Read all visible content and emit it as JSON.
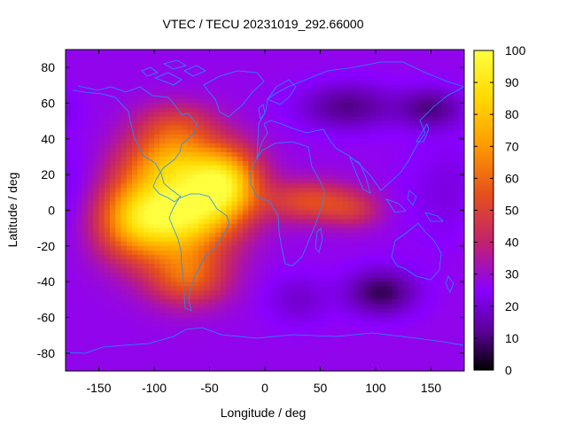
{
  "chart_data": {
    "type": "heatmap",
    "title": "VTEC / TECU 20231019_292.66000",
    "xlabel": "Longitude / deg",
    "ylabel": "Latitude / deg",
    "xlim": [
      -180,
      180
    ],
    "ylim": [
      -90,
      90
    ],
    "xticks": [
      -150,
      -100,
      -50,
      0,
      50,
      100,
      150
    ],
    "yticks": [
      80,
      60,
      40,
      20,
      0,
      -20,
      -40,
      -60,
      -80
    ],
    "colorbar": {
      "min": 0,
      "max": 100,
      "ticks": [
        100,
        90,
        80,
        70,
        60,
        50,
        40,
        30,
        20,
        10,
        0
      ],
      "colors": [
        "#000000",
        "#5a0096",
        "#8a00ff",
        "#c2226e",
        "#e6501b",
        "#ff9900",
        "#ffd900",
        "#ffff40"
      ],
      "stops": [
        0,
        0.12,
        0.25,
        0.4,
        0.55,
        0.7,
        0.85,
        1.0
      ]
    },
    "grid": {
      "dlon": 5,
      "dlat": 2.5
    },
    "field": {
      "background_tecu": 27,
      "features": [
        {
          "name": "anomaly-crest-south-america",
          "lon": -75,
          "lat": -2,
          "slon": 32,
          "slat": 17,
          "amp": 63
        },
        {
          "name": "anomaly-crest-north-america",
          "lon": -85,
          "lat": 28,
          "slon": 30,
          "slat": 12,
          "amp": 36
        },
        {
          "name": "atlantic-extension",
          "lon": -35,
          "lat": 15,
          "slon": 22,
          "slat": 14,
          "amp": 50
        },
        {
          "name": "pacific-extension",
          "lon": -120,
          "lat": -5,
          "slon": 25,
          "slat": 16,
          "amp": 38
        },
        {
          "name": "southern-extension",
          "lon": -70,
          "lat": -38,
          "slon": 25,
          "slat": 11,
          "amp": 28
        },
        {
          "name": "north-america-high-lat",
          "lon": -80,
          "lat": 48,
          "slon": 25,
          "slat": 9,
          "amp": 18
        },
        {
          "name": "africa-tongue",
          "lon": 40,
          "lat": 5,
          "slon": 28,
          "slat": 8,
          "amp": 26
        },
        {
          "name": "indian-ocean-tongue",
          "lon": 80,
          "lat": 0,
          "slon": 18,
          "slat": 7,
          "amp": 14
        },
        {
          "name": "siberia-minimum",
          "lon": 75,
          "lat": 58,
          "slon": 30,
          "slat": 9,
          "amp": -16
        },
        {
          "name": "east-asia-minimum",
          "lon": 150,
          "lat": 57,
          "slon": 20,
          "slat": 8,
          "amp": -16
        },
        {
          "name": "south-indian-minimum",
          "lon": 105,
          "lat": -46,
          "slon": 22,
          "slat": 9,
          "amp": -20
        },
        {
          "name": "south-atlantic-minimum",
          "lon": 30,
          "lat": -50,
          "slon": 20,
          "slat": 10,
          "amp": -8
        },
        {
          "name": "pacific-low-lat-dip",
          "lon": 170,
          "lat": 10,
          "slon": 30,
          "slat": 20,
          "amp": -6
        }
      ]
    }
  }
}
